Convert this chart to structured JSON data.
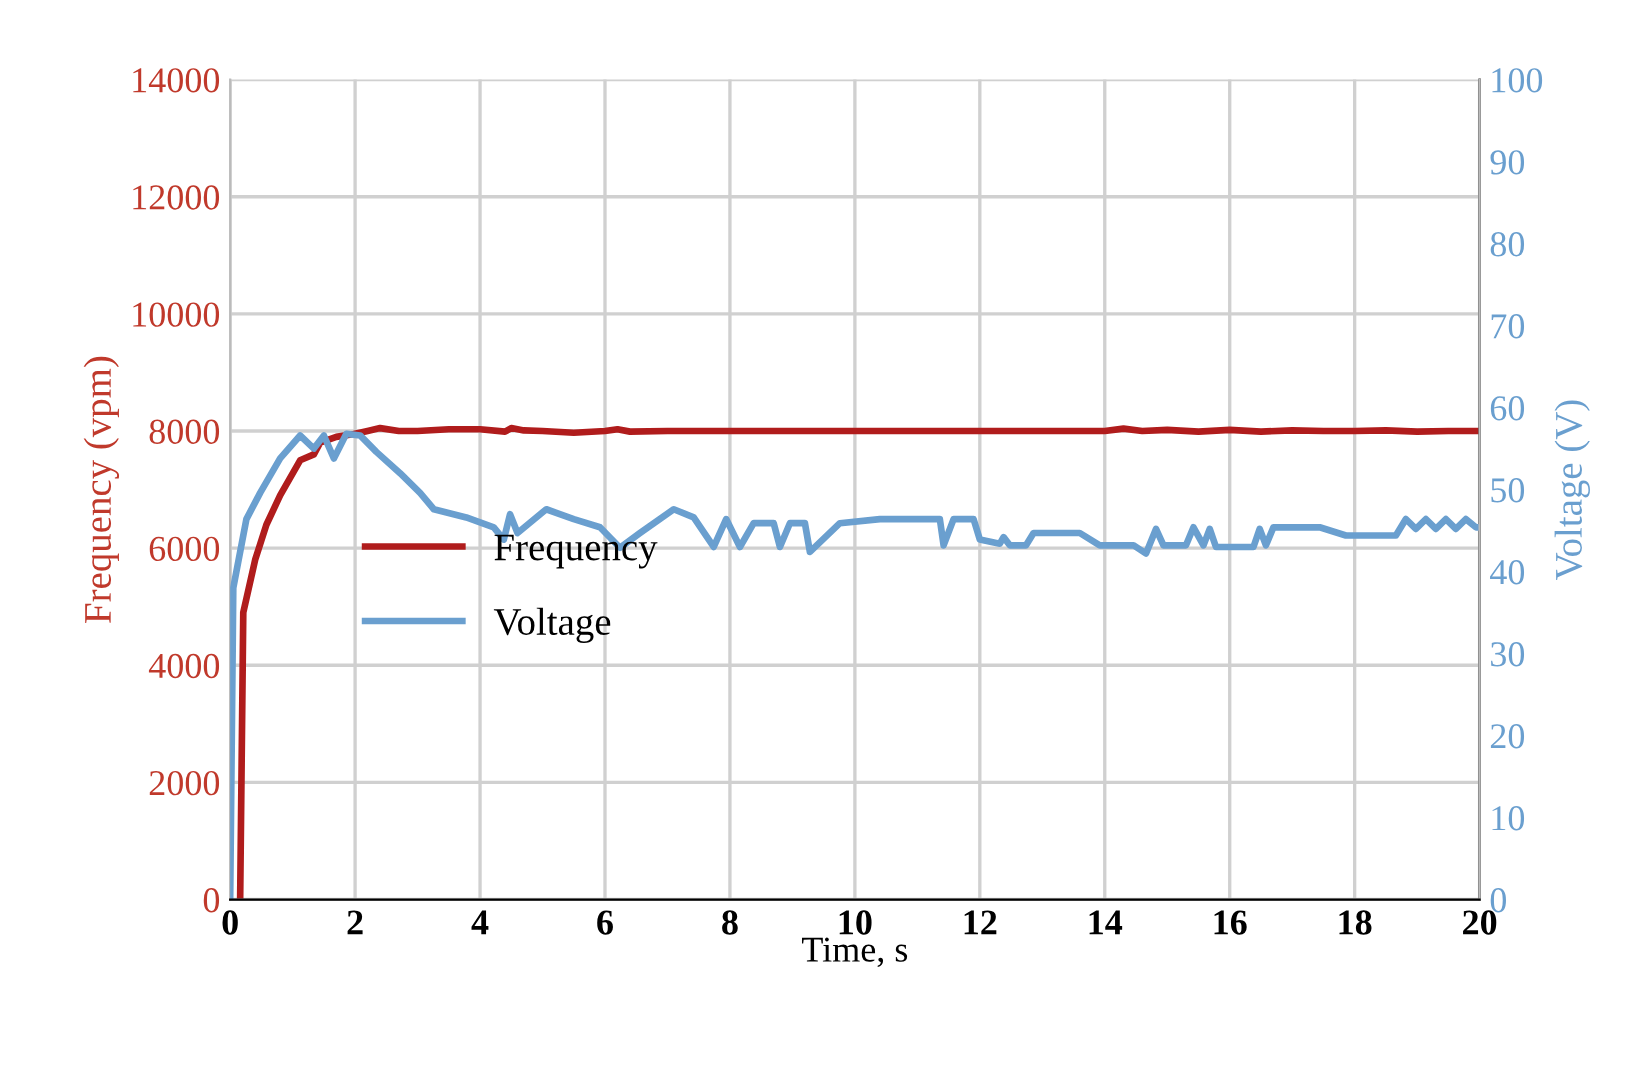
{
  "chart_data": {
    "type": "line",
    "xlabel": "Time, s",
    "ylabel": "Frequency (vpm)",
    "y2label": "Voltage (V)",
    "xlim": [
      0,
      20
    ],
    "xticks": [
      0,
      2,
      4,
      6,
      8,
      10,
      12,
      14,
      16,
      18,
      20
    ],
    "ylim": [
      0,
      14000
    ],
    "yticks": [
      0,
      2000,
      4000,
      6000,
      8000,
      10000,
      12000,
      14000
    ],
    "y2lim": [
      0,
      100
    ],
    "y2ticks": [
      0,
      10,
      20,
      30,
      40,
      50,
      60,
      70,
      80,
      90,
      100
    ],
    "grid": true,
    "legend": "left",
    "line_style": "solid",
    "marker": "none",
    "series": [
      {
        "name": "Frequency",
        "color": "#b01c1c",
        "x": [
          0.16,
          0.21,
          0.4,
          0.58,
          0.8,
          1.12,
          1.34,
          1.44,
          1.7,
          1.98,
          2.2,
          2.4,
          2.7,
          3.0,
          3.5,
          4.0,
          4.4,
          4.5,
          4.7,
          5.0,
          5.5,
          6.0,
          6.2,
          6.4,
          7.0,
          8.0,
          9.0,
          10.0,
          11.0,
          12.0,
          13.0,
          14.0,
          14.3,
          14.6,
          15.0,
          15.5,
          16.0,
          16.5,
          17.0,
          17.5,
          18.0,
          18.5,
          19.0,
          19.5,
          20.0
        ],
        "values": [
          0,
          4900,
          5800,
          6400,
          6900,
          7500,
          7600,
          7800,
          7900,
          7950,
          8000,
          8050,
          8000,
          8000,
          8030,
          8030,
          7990,
          8050,
          8010,
          8000,
          7970,
          8000,
          8030,
          7990,
          8000,
          8000,
          8000,
          8000,
          8000,
          8000,
          8000,
          8000,
          8040,
          8000,
          8020,
          7990,
          8020,
          7990,
          8010,
          8000,
          8000,
          8010,
          7990,
          8000,
          8000
        ]
      },
      {
        "name": "Voltage",
        "color": "#6a9fcf",
        "axis": "y2",
        "x": [
          0,
          0.05,
          0.26,
          0.48,
          0.8,
          1.12,
          1.34,
          1.5,
          1.66,
          1.86,
          2.08,
          2.34,
          2.72,
          3.04,
          3.26,
          3.78,
          4.22,
          4.38,
          4.48,
          4.6,
          5.06,
          5.5,
          5.92,
          6.24,
          6.56,
          7.1,
          7.42,
          7.74,
          7.94,
          8.16,
          8.38,
          8.7,
          8.8,
          8.96,
          9.2,
          9.28,
          9.76,
          10.4,
          11.36,
          11.42,
          11.58,
          11.9,
          12.0,
          12.32,
          12.38,
          12.48,
          12.74,
          12.86,
          13.6,
          13.92,
          14.46,
          14.66,
          14.82,
          14.94,
          15.3,
          15.42,
          15.58,
          15.68,
          15.78,
          16.38,
          16.48,
          16.58,
          16.7,
          17.44,
          17.86,
          18.66,
          18.82,
          18.98,
          19.14,
          19.3,
          19.46,
          19.62,
          19.78,
          19.94,
          20.0
        ],
        "values": [
          0,
          38,
          46.4,
          49.6,
          53.8,
          56.6,
          55,
          56.6,
          53.8,
          56.8,
          56.6,
          54.6,
          52,
          49.6,
          47.6,
          46.6,
          45.4,
          43.9,
          47,
          44.7,
          47.6,
          46.4,
          45.4,
          42.9,
          44.7,
          47.6,
          46.6,
          43,
          46.4,
          43,
          45.9,
          45.9,
          43,
          45.9,
          45.9,
          42.4,
          45.9,
          46.4,
          46.4,
          43.2,
          46.4,
          46.4,
          43.9,
          43.4,
          44.2,
          43.2,
          43.2,
          44.7,
          44.7,
          43.2,
          43.2,
          42.2,
          45.2,
          43.2,
          43.2,
          45.4,
          43.2,
          45.2,
          43,
          43,
          45.2,
          43.2,
          45.4,
          45.4,
          44.4,
          44.4,
          46.4,
          45.2,
          46.4,
          45.2,
          46.4,
          45.2,
          46.4,
          45.4,
          45.4
        ]
      }
    ]
  }
}
